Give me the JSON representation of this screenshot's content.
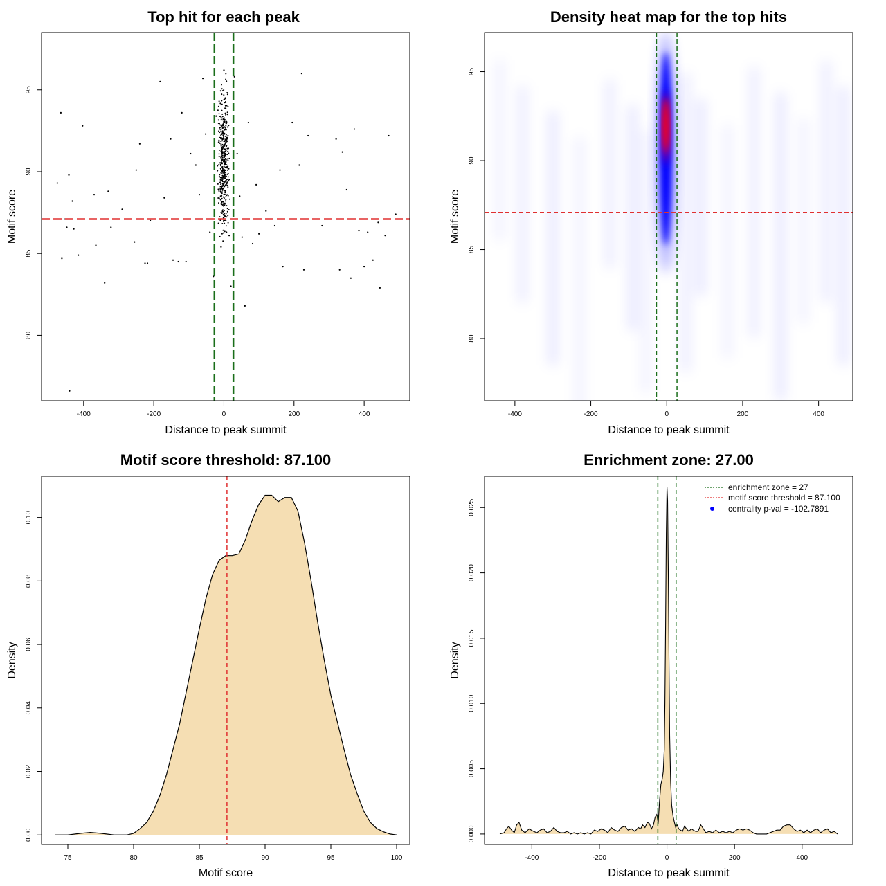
{
  "chart_data": [
    {
      "type": "scatter",
      "title": "Top hit for each peak",
      "xlabel": "Distance to peak summit",
      "ylabel": "Motif score",
      "xlim": [
        -520,
        530
      ],
      "ylim": [
        76.0,
        98.5
      ],
      "xticks": [
        -400,
        -200,
        0,
        200,
        400
      ],
      "yticks": [
        80,
        85,
        90,
        95
      ],
      "threshold_y": 87.1,
      "zone_x": [
        -27,
        27
      ],
      "colors": {
        "points": "#000000",
        "threshold": "#e03030",
        "zone": "#1a6e1a"
      },
      "points": [
        [
          -475,
          89.3
        ],
        [
          -465,
          93.6
        ],
        [
          -462,
          84.7
        ],
        [
          -455,
          87.1
        ],
        [
          -448,
          86.6
        ],
        [
          -442,
          89.8
        ],
        [
          -432,
          88.2
        ],
        [
          -428,
          86.5
        ],
        [
          -415,
          84.9
        ],
        [
          -403,
          92.8
        ],
        [
          -370,
          88.6
        ],
        [
          -365,
          85.5
        ],
        [
          -340,
          83.2
        ],
        [
          -330,
          88.8
        ],
        [
          -322,
          86.6
        ],
        [
          -290,
          87.7
        ],
        [
          -255,
          85.7
        ],
        [
          -250,
          90.1
        ],
        [
          -240,
          91.7
        ],
        [
          -225,
          84.4
        ],
        [
          -218,
          84.4
        ],
        [
          -210,
          87.0
        ],
        [
          -182,
          95.5
        ],
        [
          -170,
          88.4
        ],
        [
          -152,
          92.0
        ],
        [
          -145,
          84.6
        ],
        [
          -130,
          84.5
        ],
        [
          -120,
          93.6
        ],
        [
          -108,
          84.5
        ],
        [
          -95,
          91.1
        ],
        [
          -80,
          90.4
        ],
        [
          -70,
          88.6
        ],
        [
          -60,
          95.7
        ],
        [
          -52,
          92.3
        ],
        [
          -40,
          86.3
        ],
        [
          -30,
          83.6
        ],
        [
          -22,
          93.4
        ],
        [
          -15,
          88.9
        ],
        [
          -8,
          85.4
        ],
        [
          0,
          96.2
        ],
        [
          8,
          91.9
        ],
        [
          15,
          86.1
        ],
        [
          20,
          83.0
        ],
        [
          30,
          95.8
        ],
        [
          38,
          91.1
        ],
        [
          45,
          88.5
        ],
        [
          52,
          86.0
        ],
        [
          60,
          81.8
        ],
        [
          70,
          93.0
        ],
        [
          82,
          85.6
        ],
        [
          92,
          89.2
        ],
        [
          100,
          86.2
        ],
        [
          120,
          87.6
        ],
        [
          145,
          86.7
        ],
        [
          160,
          90.1
        ],
        [
          168,
          84.2
        ],
        [
          195,
          93.0
        ],
        [
          215,
          90.4
        ],
        [
          222,
          96.0
        ],
        [
          228,
          84.0
        ],
        [
          240,
          92.2
        ],
        [
          280,
          86.7
        ],
        [
          320,
          92.0
        ],
        [
          330,
          84.0
        ],
        [
          338,
          91.2
        ],
        [
          350,
          88.9
        ],
        [
          362,
          83.5
        ],
        [
          372,
          92.6
        ],
        [
          385,
          86.4
        ],
        [
          400,
          84.2
        ],
        [
          410,
          86.3
        ],
        [
          425,
          84.6
        ],
        [
          440,
          86.9
        ],
        [
          445,
          82.9
        ],
        [
          460,
          86.1
        ],
        [
          470,
          92.2
        ],
        [
          490,
          87.4
        ],
        [
          -440,
          76.6
        ]
      ]
    },
    {
      "type": "heatmap",
      "title": "Density heat map for the top hits",
      "xlabel": "Distance to peak summit",
      "ylabel": "Motif score",
      "xlim": [
        -480,
        490
      ],
      "ylim": [
        76.5,
        97.2
      ],
      "xticks": [
        -400,
        -200,
        0,
        200,
        400
      ],
      "yticks": [
        80,
        85,
        90,
        95
      ],
      "threshold_y": 87.1,
      "zone_x": [
        -27,
        27
      ],
      "colors": {
        "low": "#ffffff",
        "mid": "#0000ff",
        "high": "#ff0000",
        "threshold": "#e03030",
        "zone": "#1a6e1a"
      }
    },
    {
      "type": "area",
      "title": "Motif score threshold: 87.100",
      "xlabel": "Motif score",
      "ylabel": "Density",
      "xlim": [
        73.0,
        101.0
      ],
      "ylim": [
        -0.003,
        0.113
      ],
      "xticks": [
        75,
        80,
        85,
        90,
        95,
        100
      ],
      "yticks": [
        0.0,
        0.02,
        0.04,
        0.06,
        0.08,
        0.1
      ],
      "ytick_labels": [
        "0.00",
        "0.02",
        "0.04",
        "0.06",
        "0.08",
        "0.10"
      ],
      "threshold_x": 87.1,
      "colors": {
        "fill": "#f5deb3",
        "line": "#000000",
        "threshold": "#e03030"
      },
      "x": [
        74.0,
        75.0,
        76.0,
        76.7,
        77.5,
        78.5,
        79.5,
        80.0,
        80.5,
        81.0,
        81.5,
        82.0,
        82.5,
        83.0,
        83.5,
        84.0,
        84.5,
        85.0,
        85.5,
        86.0,
        86.5,
        87.0,
        87.5,
        88.0,
        88.5,
        89.0,
        89.5,
        90.0,
        90.5,
        91.0,
        91.5,
        92.0,
        92.5,
        93.0,
        93.5,
        94.0,
        94.5,
        95.0,
        95.5,
        96.0,
        96.5,
        97.0,
        97.5,
        98.0,
        98.5,
        99.0,
        99.5,
        100.0
      ],
      "y": [
        0.0,
        0.0,
        0.0005,
        0.0008,
        0.0005,
        0.0,
        0.0,
        0.0005,
        0.002,
        0.004,
        0.0075,
        0.0125,
        0.019,
        0.027,
        0.035,
        0.045,
        0.055,
        0.065,
        0.0745,
        0.082,
        0.0865,
        0.088,
        0.088,
        0.0885,
        0.093,
        0.099,
        0.104,
        0.107,
        0.107,
        0.105,
        0.1063,
        0.1063,
        0.102,
        0.092,
        0.08,
        0.067,
        0.055,
        0.044,
        0.0355,
        0.027,
        0.019,
        0.013,
        0.0075,
        0.004,
        0.002,
        0.001,
        0.0003,
        0.0
      ]
    },
    {
      "type": "area",
      "title": "Enrichment zone: 27.00",
      "xlabel": "Distance to peak summit",
      "ylabel": "Density",
      "xlim": [
        -540,
        550
      ],
      "ylim": [
        -0.0008,
        0.0274
      ],
      "xticks": [
        -400,
        -200,
        0,
        200,
        400
      ],
      "yticks": [
        0.0,
        0.005,
        0.01,
        0.015,
        0.02,
        0.025
      ],
      "ytick_labels": [
        "0.000",
        "0.005",
        "0.010",
        "0.015",
        "0.020",
        "0.025"
      ],
      "zone_x": [
        -27,
        27
      ],
      "legend_position": "top-right",
      "legend": [
        {
          "label": "enrichment zone = 27",
          "color": "#1a6e1a",
          "kind": "dotted-line"
        },
        {
          "label": "motif score threshold = 87.100",
          "color": "#e03030",
          "kind": "dotted-line"
        },
        {
          "label": "centrality p-val = -102.7891",
          "color": "#0000ff",
          "kind": "point"
        }
      ],
      "colors": {
        "fill": "#f5deb3",
        "line": "#000000",
        "zone": "#1a6e1a"
      },
      "x": [
        -495,
        -482,
        -475,
        -468,
        -460,
        -452,
        -445,
        -438,
        -430,
        -420,
        -408,
        -395,
        -385,
        -375,
        -365,
        -355,
        -345,
        -335,
        -325,
        -315,
        -305,
        -295,
        -285,
        -275,
        -265,
        -255,
        -245,
        -235,
        -225,
        -215,
        -205,
        -195,
        -185,
        -175,
        -165,
        -155,
        -145,
        -135,
        -125,
        -115,
        -105,
        -95,
        -85,
        -78,
        -72,
        -65,
        -58,
        -52,
        -46,
        -40,
        -35,
        -30,
        -26,
        -22,
        -18,
        -14,
        -11,
        -8,
        -6,
        -4,
        -2,
        0,
        2,
        4,
        6,
        8,
        11,
        14,
        18,
        22,
        26,
        30,
        35,
        40,
        46,
        52,
        58,
        65,
        72,
        78,
        85,
        92,
        100,
        108,
        115,
        125,
        135,
        145,
        155,
        165,
        175,
        185,
        195,
        205,
        215,
        225,
        235,
        245,
        255,
        265,
        275,
        285,
        295,
        305,
        315,
        325,
        335,
        345,
        355,
        365,
        375,
        385,
        395,
        405,
        415,
        425,
        435,
        445,
        455,
        465,
        475,
        485,
        495,
        505
      ],
      "y": [
        0.0,
        0.0001,
        0.0004,
        0.0006,
        0.0003,
        0.0001,
        0.0007,
        0.0009,
        0.0003,
        0.0001,
        0.0004,
        0.0002,
        0.0001,
        0.0003,
        0.0004,
        0.0001,
        0.0002,
        0.0005,
        0.0002,
        0.0001,
        0.0001,
        0.0002,
        0.0,
        0.0001,
        0.0,
        0.0001,
        0.0,
        0.0001,
        0.0,
        0.0003,
        0.0002,
        0.0004,
        0.0003,
        0.0001,
        0.0005,
        0.0003,
        0.0002,
        0.0005,
        0.0006,
        0.0003,
        0.0004,
        0.0002,
        0.0005,
        0.0004,
        0.0007,
        0.0005,
        0.0009,
        0.0008,
        0.0004,
        0.0007,
        0.0013,
        0.0015,
        0.0008,
        0.0025,
        0.0038,
        0.0042,
        0.0048,
        0.0065,
        0.01,
        0.016,
        0.023,
        0.0266,
        0.0255,
        0.02,
        0.0135,
        0.0075,
        0.004,
        0.0022,
        0.0014,
        0.0009,
        0.0005,
        0.0007,
        0.0004,
        0.0003,
        0.0002,
        0.0006,
        0.0004,
        0.0002,
        0.0004,
        0.0003,
        0.0002,
        0.0002,
        0.0007,
        0.0004,
        0.0001,
        0.0002,
        0.0001,
        0.0003,
        0.0001,
        0.0002,
        0.0001,
        0.0002,
        0.0001,
        0.0003,
        0.0004,
        0.0003,
        0.0004,
        0.0003,
        0.0001,
        0.0,
        0.0,
        0.0,
        0.0,
        0.0001,
        0.0002,
        0.0003,
        0.0003,
        0.0006,
        0.0007,
        0.0007,
        0.0004,
        0.0002,
        0.0003,
        0.0001,
        0.0003,
        0.0001,
        0.0003,
        0.0004,
        0.0001,
        0.0003,
        0.0004,
        0.0001,
        0.0002,
        0.0
      ]
    }
  ]
}
